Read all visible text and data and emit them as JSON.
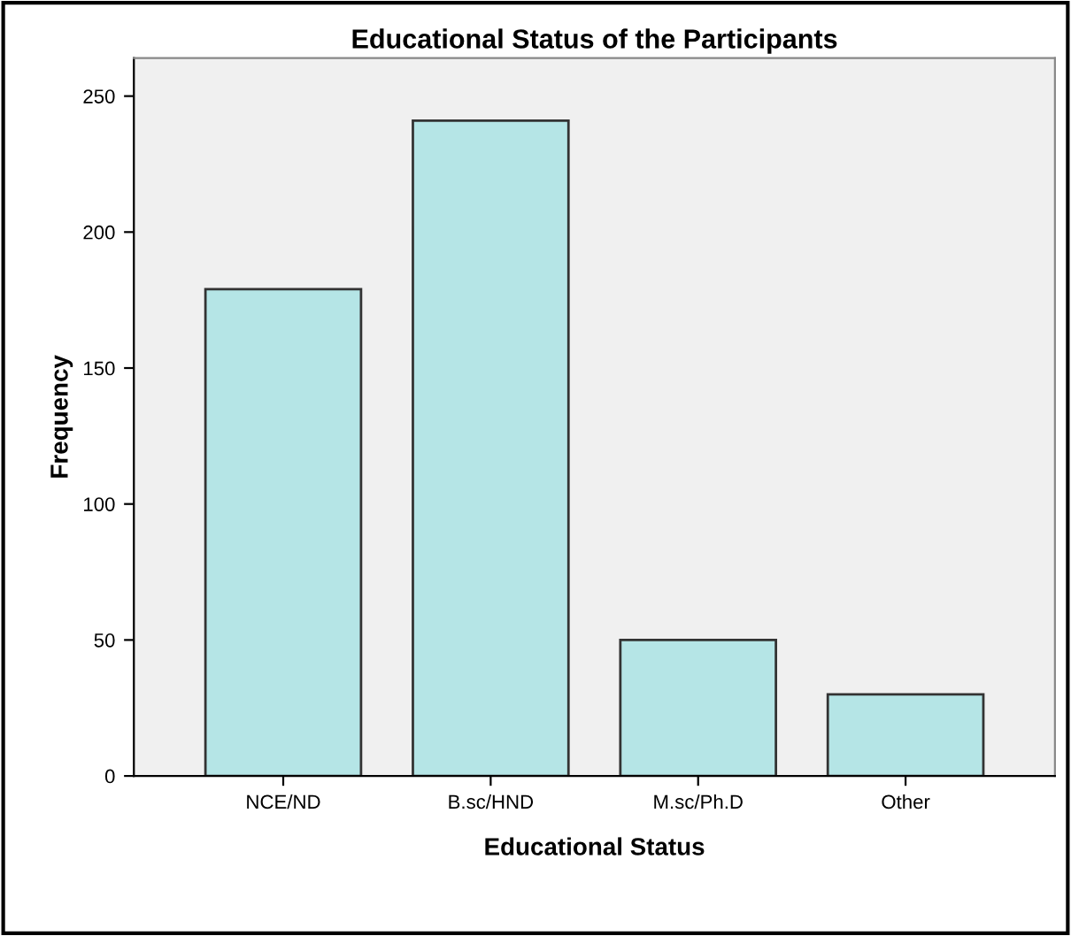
{
  "chart_data": {
    "type": "bar",
    "title": "Educational Status of the Participants",
    "xlabel": "Educational Status",
    "ylabel": "Frequency",
    "categories": [
      "NCE/ND",
      "B.sc/HND",
      "M.sc/Ph.D",
      "Other"
    ],
    "values": [
      179,
      241,
      50,
      30
    ],
    "color": "#b5e5e6",
    "ylim": [
      0,
      264
    ],
    "yticks": [
      0,
      50,
      100,
      150,
      200,
      250
    ],
    "grid": false
  }
}
